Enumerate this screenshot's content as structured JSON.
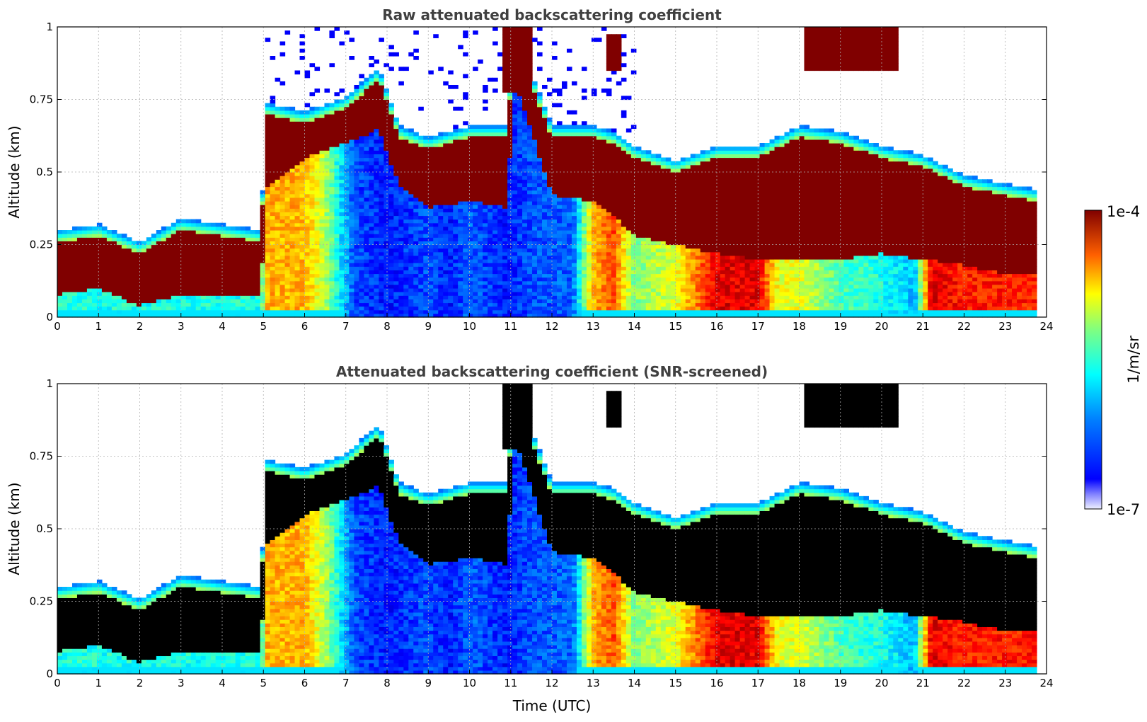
{
  "chart_data": [
    {
      "type": "heatmap",
      "title": "Raw attenuated backscattering coefficient",
      "xlabel": "",
      "ylabel": "Altitude (km)",
      "xlim": [
        0,
        24
      ],
      "ylim": [
        0,
        1
      ],
      "x_ticks": [
        "0",
        "1",
        "2",
        "3",
        "4",
        "5",
        "6",
        "7",
        "8",
        "9",
        "10",
        "11",
        "12",
        "13",
        "14",
        "15",
        "16",
        "17",
        "18",
        "19",
        "20",
        "21",
        "22",
        "23",
        "24"
      ],
      "y_ticks": [
        "0",
        "0.25",
        "0.5",
        "0.75",
        "1"
      ],
      "grid": true,
      "screened": false,
      "layer_top_km": [
        [
          0,
          0.26
        ],
        [
          1,
          0.28
        ],
        [
          2,
          0.22
        ],
        [
          3,
          0.3
        ],
        [
          4,
          0.28
        ],
        [
          4.95,
          0.26
        ],
        [
          5.05,
          0.7
        ],
        [
          6,
          0.67
        ],
        [
          7,
          0.72
        ],
        [
          7.8,
          0.82
        ],
        [
          8.3,
          0.62
        ],
        [
          9,
          0.58
        ],
        [
          10,
          0.62
        ],
        [
          10.9,
          0.62
        ],
        [
          11.1,
          0.95
        ],
        [
          12,
          0.62
        ],
        [
          13,
          0.62
        ],
        [
          13.5,
          0.6
        ],
        [
          14,
          0.55
        ],
        [
          15,
          0.5
        ],
        [
          16,
          0.55
        ],
        [
          17,
          0.55
        ],
        [
          18,
          0.62
        ],
        [
          19,
          0.6
        ],
        [
          20,
          0.55
        ],
        [
          21,
          0.52
        ],
        [
          22,
          0.45
        ],
        [
          23,
          0.42
        ],
        [
          23.8,
          0.4
        ]
      ],
      "layer_base_km": [
        [
          0,
          0.08
        ],
        [
          1,
          0.1
        ],
        [
          2,
          0.04
        ],
        [
          3,
          0.08
        ],
        [
          4,
          0.08
        ],
        [
          4.95,
          0.08
        ],
        [
          5.05,
          0.45
        ],
        [
          6,
          0.55
        ],
        [
          7,
          0.6
        ],
        [
          7.8,
          0.65
        ],
        [
          8.3,
          0.45
        ],
        [
          9,
          0.38
        ],
        [
          10,
          0.4
        ],
        [
          10.9,
          0.38
        ],
        [
          11.1,
          0.82
        ],
        [
          12,
          0.42
        ],
        [
          13,
          0.4
        ],
        [
          13.5,
          0.35
        ],
        [
          14,
          0.28
        ],
        [
          15,
          0.25
        ],
        [
          16,
          0.22
        ],
        [
          17,
          0.2
        ],
        [
          18,
          0.2
        ],
        [
          19,
          0.2
        ],
        [
          20,
          0.22
        ],
        [
          21,
          0.2
        ],
        [
          22,
          0.18
        ],
        [
          23,
          0.15
        ],
        [
          23.8,
          0.15
        ]
      ],
      "below_layer_intensity": [
        [
          0,
          0.4
        ],
        [
          4.95,
          0.4
        ],
        [
          5.05,
          0.7
        ],
        [
          6,
          0.7
        ],
        [
          6.5,
          0.55
        ],
        [
          7.2,
          0.2
        ],
        [
          8,
          0.15
        ],
        [
          9,
          0.2
        ],
        [
          9.5,
          0.15
        ],
        [
          10,
          0.22
        ],
        [
          10.9,
          0.15
        ],
        [
          11.5,
          0.2
        ],
        [
          12.5,
          0.22
        ],
        [
          13,
          0.7
        ],
        [
          13.5,
          0.8
        ],
        [
          14,
          0.5
        ],
        [
          15,
          0.6
        ],
        [
          16,
          0.9
        ],
        [
          17,
          0.9
        ],
        [
          17.5,
          0.6
        ],
        [
          18,
          0.6
        ],
        [
          19,
          0.45
        ],
        [
          20,
          0.4
        ],
        [
          20.8,
          0.3
        ],
        [
          21.2,
          0.9
        ],
        [
          22,
          0.85
        ],
        [
          23,
          0.85
        ],
        [
          23.8,
          0.85
        ]
      ],
      "cloud_regions": [
        {
          "x": [
            18.1,
            20.4
          ],
          "y_bottom": 0.85,
          "y_top": 1.0
        },
        {
          "x": [
            10.85,
            11.5
          ],
          "y_bottom": 0.78,
          "y_top": 1.0
        },
        {
          "x": [
            13.35,
            13.7
          ],
          "y_bottom": 0.85,
          "y_top": 0.97
        }
      ]
    },
    {
      "type": "heatmap",
      "title": "Attenuated backscattering coefficient (SNR-screened)",
      "xlabel": "Time (UTC)",
      "ylabel": "Altitude (km)",
      "xlim": [
        0,
        24
      ],
      "ylim": [
        0,
        1
      ],
      "x_ticks": [
        "0",
        "1",
        "2",
        "3",
        "4",
        "5",
        "6",
        "7",
        "8",
        "9",
        "10",
        "11",
        "12",
        "13",
        "14",
        "15",
        "16",
        "17",
        "18",
        "19",
        "20",
        "21",
        "22",
        "23",
        "24"
      ],
      "y_ticks": [
        "0",
        "0.25",
        "0.5",
        "0.75",
        "1"
      ],
      "grid": true,
      "screened": true,
      "saturation_color": "#000000"
    }
  ],
  "colorbar": {
    "label": "1/m/sr",
    "max_label": "1e-4",
    "min_label": "1e-7",
    "scale": "log",
    "range": [
      1e-07,
      0.0001
    ],
    "colormap": "jet"
  }
}
